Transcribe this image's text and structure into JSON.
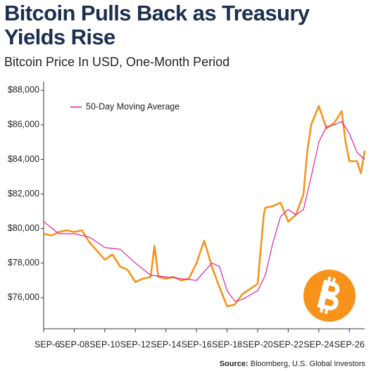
{
  "chart_data": {
    "type": "line",
    "title": "Bitcoin Pulls Back as Treasury Yields Rise",
    "subtitle": "Bitcoin Price In USD, One-Month Period",
    "source_label": "Source:",
    "source": "Bloomberg, U.S. Global Investors",
    "xlim": [
      6,
      27
    ],
    "xticks": [
      {
        "value": 6,
        "label": "SEP-6"
      },
      {
        "value": 8,
        "label": "SEP-08"
      },
      {
        "value": 10,
        "label": "SEP-10"
      },
      {
        "value": 12,
        "label": "SEP-12"
      },
      {
        "value": 14,
        "label": "SEP-14"
      },
      {
        "value": 16,
        "label": "SEP-16"
      },
      {
        "value": 18,
        "label": "SEP-18"
      },
      {
        "value": 20,
        "label": "SEP-20"
      },
      {
        "value": 22,
        "label": "SEP-22"
      },
      {
        "value": 24,
        "label": "SEP-24"
      },
      {
        "value": 26,
        "label": "SEP-26"
      }
    ],
    "ylim": [
      74200,
      88500
    ],
    "yticks": [
      {
        "value": 76000,
        "label": "$76,000"
      },
      {
        "value": 78000,
        "label": "$78,000"
      },
      {
        "value": 80000,
        "label": "$80,000"
      },
      {
        "value": 82000,
        "label": "$82,000"
      },
      {
        "value": 84000,
        "label": "$84,000"
      },
      {
        "value": 86000,
        "label": "$86,000"
      },
      {
        "value": 88000,
        "label": "$88,000"
      }
    ],
    "grid": false,
    "legend": "upper left",
    "series": [
      {
        "color": "#f7931a",
        "x": [
          6,
          6.5,
          7,
          7.5,
          8,
          8.5,
          9,
          9.5,
          10,
          10.5,
          11,
          11.5,
          12,
          12.5,
          13,
          13.25,
          13.5,
          14,
          14.5,
          15,
          15.5,
          16,
          16.5,
          17,
          17.5,
          18,
          18.5,
          19,
          19.5,
          20,
          20.4,
          20.5,
          21,
          21.5,
          22,
          22.5,
          23,
          23.25,
          23.5,
          24,
          24.5,
          25,
          25.5,
          25.75,
          26,
          26.5,
          26.75,
          27
        ],
        "values": [
          79700,
          79600,
          79800,
          79900,
          79800,
          79900,
          79200,
          78700,
          78200,
          78500,
          77800,
          77600,
          76900,
          77100,
          77200,
          79000,
          77200,
          77100,
          77200,
          77000,
          77100,
          78000,
          79300,
          77800,
          76600,
          75500,
          75600,
          76200,
          76500,
          76800,
          80800,
          81200,
          81300,
          81500,
          80400,
          80800,
          82000,
          84500,
          86000,
          87100,
          85800,
          86100,
          86800,
          85000,
          83900,
          83900,
          83200,
          84500
        ]
      },
      {
        "name": "50-Day Moving Average",
        "color": "#e0219b",
        "x": [
          6,
          7,
          8,
          9,
          10,
          11,
          12,
          13,
          14,
          15,
          16,
          17,
          17.5,
          18,
          18.5,
          19,
          20,
          20.5,
          21,
          21.5,
          22,
          22.5,
          23,
          23.5,
          24,
          24.5,
          25,
          25.5,
          26,
          26.5,
          27
        ],
        "values": [
          80400,
          79700,
          79700,
          79500,
          78900,
          78800,
          78000,
          77300,
          77200,
          77100,
          77000,
          78000,
          77800,
          76400,
          75800,
          75900,
          76400,
          77300,
          79200,
          80700,
          81100,
          80800,
          81100,
          83000,
          85000,
          85900,
          86000,
          86200,
          85500,
          84400,
          84000
        ]
      }
    ]
  }
}
